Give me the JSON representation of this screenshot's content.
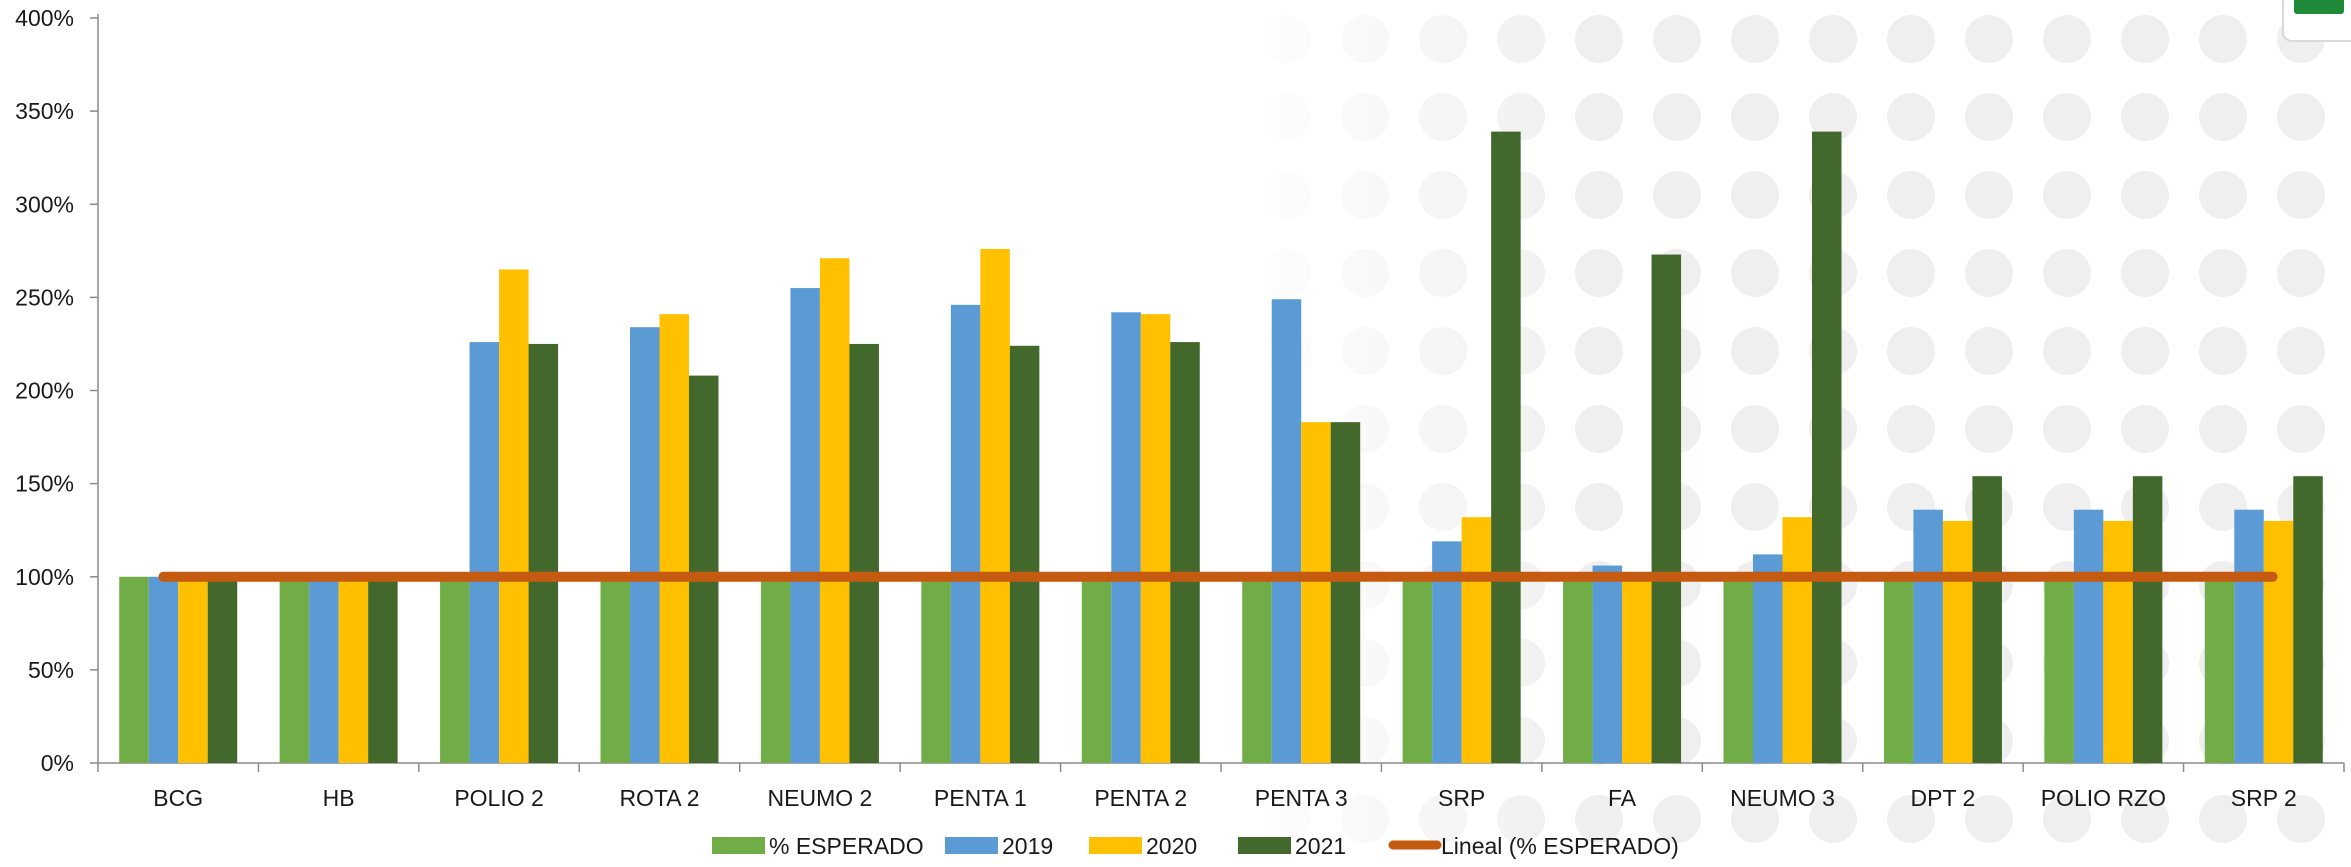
{
  "chart_data": {
    "type": "bar",
    "categories": [
      "BCG",
      "HB",
      "POLIO 2",
      "ROTA 2",
      "NEUMO 2",
      "PENTA 1",
      "PENTA 2",
      "PENTA 3",
      "SRP",
      "FA",
      "NEUMO 3",
      "DPT 2",
      "POLIO RZO",
      "SRP 2"
    ],
    "series": [
      {
        "name": "% ESPERADO",
        "color": "#70ad47",
        "values": [
          100,
          100,
          100,
          100,
          100,
          100,
          100,
          100,
          100,
          100,
          100,
          100,
          100,
          100
        ]
      },
      {
        "name": "2019",
        "color": "#5b9bd5",
        "values": [
          100,
          100,
          226,
          234,
          255,
          246,
          242,
          249,
          119,
          106,
          112,
          136,
          136,
          136
        ]
      },
      {
        "name": "2020",
        "color": "#ffc000",
        "values": [
          100,
          100,
          265,
          241,
          271,
          276,
          241,
          183,
          132,
          100,
          132,
          130,
          130,
          130
        ]
      },
      {
        "name": "2021",
        "color": "#43682b",
        "values": [
          100,
          100,
          225,
          208,
          225,
          224,
          226,
          183,
          339,
          273,
          339,
          154,
          154,
          154
        ]
      }
    ],
    "trendline": {
      "name": "Lineal (% ESPERADO)",
      "color": "#c55a11",
      "value": 100
    },
    "yticks": [
      "0%",
      "50%",
      "100%",
      "150%",
      "200%",
      "250%",
      "300%",
      "350%",
      "400%"
    ],
    "ylim": [
      0,
      400
    ],
    "grid": false,
    "legend": "bottom"
  }
}
